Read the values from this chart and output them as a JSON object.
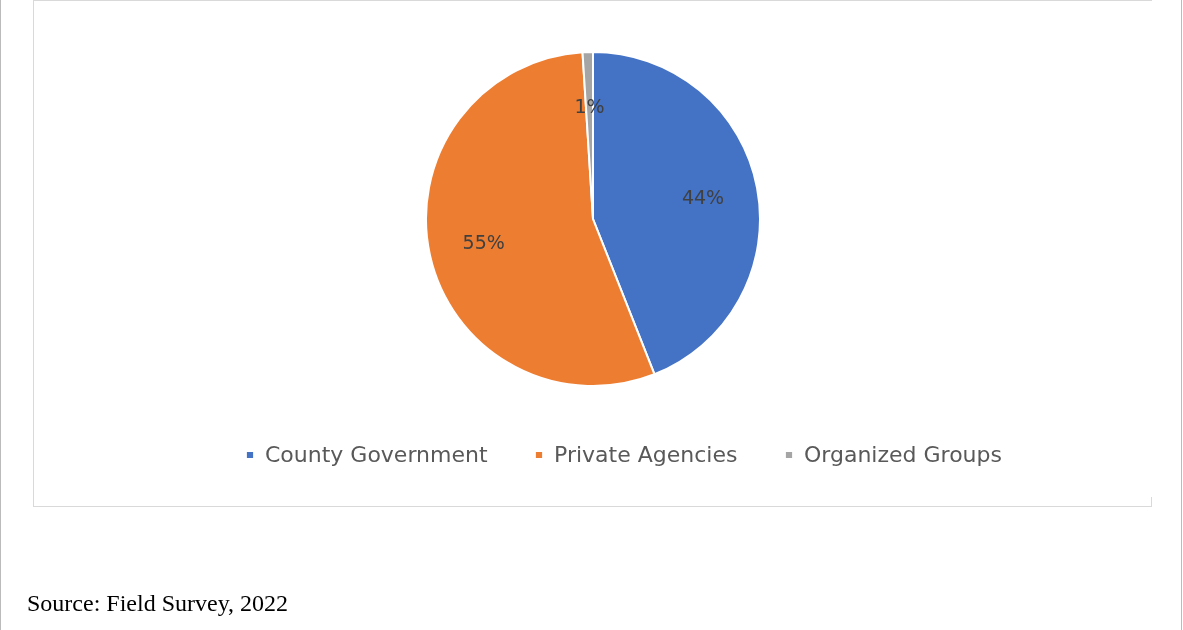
{
  "chart_data": {
    "type": "pie",
    "categories": [
      "County Government",
      "Private Agencies",
      "Organized Groups"
    ],
    "values": [
      44,
      55,
      1
    ],
    "colors": [
      "#4472c4",
      "#ed7d31",
      "#a5a5a5"
    ],
    "value_labels": [
      "44%",
      "55%",
      "1%"
    ],
    "legend": "bottom",
    "annotations": [
      "Source: Field Survey, 2022"
    ]
  }
}
